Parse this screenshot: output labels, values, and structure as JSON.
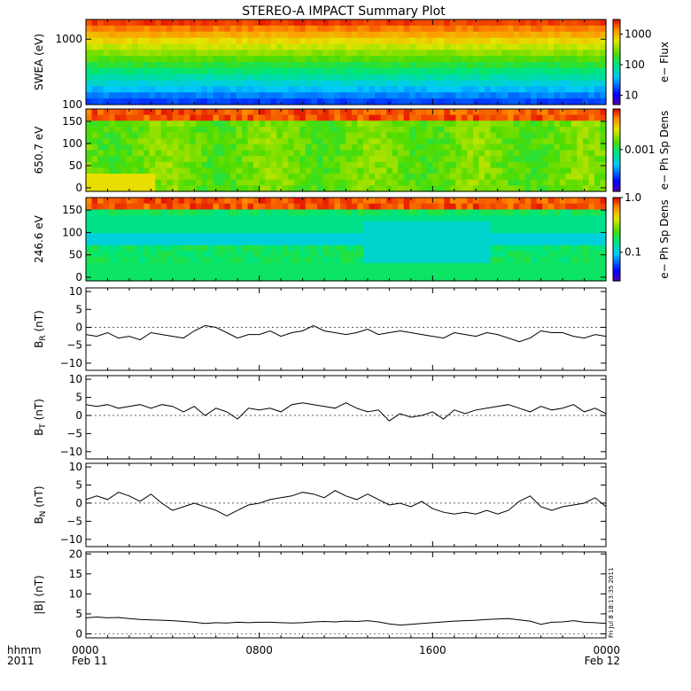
{
  "chart_data": {
    "title": "STEREO-A IMPACT Summary Plot",
    "stamp": "Fri Jul 8 18:13:35 2011",
    "x_axis": {
      "corner_top": "hhmm",
      "corner_bottom": "2011",
      "ticks": [
        {
          "hours": 0,
          "top": "0000",
          "bottom": "Feb 11"
        },
        {
          "hours": 8,
          "top": "0800",
          "bottom": ""
        },
        {
          "hours": 16,
          "top": "1600",
          "bottom": ""
        },
        {
          "hours": 24,
          "top": "0000",
          "bottom": "Feb 12"
        }
      ],
      "xlim_hours": [
        0,
        24
      ]
    },
    "panels": [
      {
        "type": "heatmap",
        "ylabel": "SWEA (eV)",
        "yscale": "log",
        "ylim": [
          100,
          2000
        ],
        "yticks": [
          {
            "v": 100,
            "label": "100"
          },
          {
            "v": 1000,
            "label": "1000"
          }
        ],
        "colorbar": {
          "label": "e− Flux",
          "scale": "log",
          "range": [
            5,
            3000
          ],
          "ticks": [
            {
              "v": 10,
              "label": "10"
            },
            {
              "v": 100,
              "label": "100"
            },
            {
              "v": 1000,
              "label": "1000"
            }
          ]
        }
      },
      {
        "type": "heatmap",
        "ylabel": "650.7 eV",
        "ylim": [
          -8,
          178
        ],
        "yticks": [
          {
            "v": 0,
            "label": "0"
          },
          {
            "v": 50,
            "label": "50"
          },
          {
            "v": 100,
            "label": "100"
          },
          {
            "v": 150,
            "label": "150"
          }
        ],
        "colorbar": {
          "label": "e− Ph Sp Dens",
          "scale": "log",
          "range": [
            3e-05,
            0.03
          ],
          "ticks": [
            {
              "v": 0.001,
              "label": "0.001"
            }
          ]
        }
      },
      {
        "type": "heatmap",
        "ylabel": "246.6 eV",
        "ylim": [
          -8,
          178
        ],
        "yticks": [
          {
            "v": 0,
            "label": "0"
          },
          {
            "v": 50,
            "label": "50"
          },
          {
            "v": 100,
            "label": "100"
          },
          {
            "v": 150,
            "label": "150"
          }
        ],
        "colorbar": {
          "label": "e− Ph Sp Dens",
          "scale": "log",
          "range": [
            0.03,
            1.0
          ],
          "ticks": [
            {
              "v": 0.1,
              "label": "0.1"
            },
            {
              "v": 1.0,
              "label": "1.0"
            }
          ]
        }
      },
      {
        "type": "line",
        "ylabel": "B",
        "ylabel_sub": "R",
        "ylabel_unit": " (nT)",
        "ylim": [
          -12,
          11
        ],
        "yticks": [
          {
            "v": -10,
            "label": "−10"
          },
          {
            "v": -5,
            "label": "−5"
          },
          {
            "v": 0,
            "label": "0"
          },
          {
            "v": 5,
            "label": "5"
          },
          {
            "v": 10,
            "label": "10"
          }
        ],
        "x_hours": [
          0,
          0.5,
          1,
          1.5,
          2,
          2.5,
          3,
          3.5,
          4,
          4.5,
          5,
          5.5,
          6,
          6.5,
          7,
          7.5,
          8,
          8.5,
          9,
          9.5,
          10,
          10.5,
          11,
          11.5,
          12,
          12.5,
          13,
          13.5,
          14,
          14.5,
          15,
          15.5,
          16,
          16.5,
          17,
          17.5,
          18,
          18.5,
          19,
          19.5,
          20,
          20.5,
          21,
          21.5,
          22,
          22.5,
          23,
          23.5,
          24
        ],
        "values": [
          -2,
          -2.5,
          -1.5,
          -3,
          -2.5,
          -3.5,
          -1.5,
          -2,
          -2.5,
          -3,
          -1,
          0.5,
          0,
          -1.5,
          -3,
          -2,
          -2,
          -1,
          -2.5,
          -1.5,
          -1,
          0.5,
          -1,
          -1.5,
          -2,
          -1.5,
          -0.5,
          -2,
          -1.5,
          -1,
          -1.5,
          -2,
          -2.5,
          -3,
          -1.5,
          -2,
          -2.5,
          -1.5,
          -2,
          -3,
          -4,
          -3,
          -1,
          -1.5,
          -1.5,
          -2.5,
          -3,
          -2,
          -2.5
        ]
      },
      {
        "type": "line",
        "ylabel": "B",
        "ylabel_sub": "T",
        "ylabel_unit": " (nT)",
        "ylim": [
          -12,
          11
        ],
        "yticks": [
          {
            "v": -10,
            "label": "−10"
          },
          {
            "v": -5,
            "label": "−5"
          },
          {
            "v": 0,
            "label": "0"
          },
          {
            "v": 5,
            "label": "5"
          },
          {
            "v": 10,
            "label": "10"
          }
        ],
        "x_hours": [
          0,
          0.5,
          1,
          1.5,
          2,
          2.5,
          3,
          3.5,
          4,
          4.5,
          5,
          5.5,
          6,
          6.5,
          7,
          7.5,
          8,
          8.5,
          9,
          9.5,
          10,
          10.5,
          11,
          11.5,
          12,
          12.5,
          13,
          13.5,
          14,
          14.5,
          15,
          15.5,
          16,
          16.5,
          17,
          17.5,
          18,
          18.5,
          19,
          19.5,
          20,
          20.5,
          21,
          21.5,
          22,
          22.5,
          23,
          23.5,
          24
        ],
        "values": [
          3,
          2.5,
          3,
          2,
          2.5,
          3,
          2,
          3,
          2.5,
          1,
          2.5,
          0,
          2,
          1,
          -1,
          2,
          1.5,
          2,
          1,
          3,
          3.5,
          3,
          2.5,
          2,
          3.5,
          2,
          1,
          1.5,
          -1.5,
          0.5,
          -0.5,
          0,
          1,
          -1,
          1.5,
          0.5,
          1.5,
          2,
          2.5,
          3,
          2,
          1,
          2.5,
          1.5,
          2,
          3,
          1,
          2,
          0.5
        ]
      },
      {
        "type": "line",
        "ylabel": "B",
        "ylabel_sub": "N",
        "ylabel_unit": " (nT)",
        "ylim": [
          -12,
          11
        ],
        "yticks": [
          {
            "v": -10,
            "label": "−10"
          },
          {
            "v": -5,
            "label": "−5"
          },
          {
            "v": 0,
            "label": "0"
          },
          {
            "v": 5,
            "label": "5"
          },
          {
            "v": 10,
            "label": "10"
          }
        ],
        "x_hours": [
          0,
          0.5,
          1,
          1.5,
          2,
          2.5,
          3,
          3.5,
          4,
          4.5,
          5,
          5.5,
          6,
          6.5,
          7,
          7.5,
          8,
          8.5,
          9,
          9.5,
          10,
          10.5,
          11,
          11.5,
          12,
          12.5,
          13,
          13.5,
          14,
          14.5,
          15,
          15.5,
          16,
          16.5,
          17,
          17.5,
          18,
          18.5,
          19,
          19.5,
          20,
          20.5,
          21,
          21.5,
          22,
          22.5,
          23,
          23.5,
          24
        ],
        "values": [
          1,
          2,
          1,
          3,
          2,
          0.5,
          2.5,
          0,
          -2,
          -1,
          0,
          -1,
          -2,
          -3.5,
          -2,
          -0.5,
          0,
          1,
          1.5,
          2,
          3,
          2.5,
          1.5,
          3.5,
          2,
          1,
          2.5,
          1,
          -0.5,
          0,
          -1,
          0.5,
          -1.5,
          -2.5,
          -3,
          -2.5,
          -3,
          -2,
          -3,
          -2,
          0.5,
          2,
          -1,
          -2,
          -1,
          -0.5,
          0,
          1.5,
          -1
        ]
      },
      {
        "type": "line",
        "ylabel": "|B| (nT)",
        "ylim": [
          -1,
          20.5
        ],
        "yticks": [
          {
            "v": 0,
            "label": "0"
          },
          {
            "v": 5,
            "label": "5"
          },
          {
            "v": 10,
            "label": "10"
          },
          {
            "v": 15,
            "label": "15"
          },
          {
            "v": 20,
            "label": "20"
          }
        ],
        "x_hours": [
          0,
          0.5,
          1,
          1.5,
          2,
          2.5,
          3,
          3.5,
          4,
          4.5,
          5,
          5.5,
          6,
          6.5,
          7,
          7.5,
          8,
          8.5,
          9,
          9.5,
          10,
          10.5,
          11,
          11.5,
          12,
          12.5,
          13,
          13.5,
          14,
          14.5,
          15,
          15.5,
          16,
          16.5,
          17,
          17.5,
          18,
          18.5,
          19,
          19.5,
          20,
          20.5,
          21,
          21.5,
          22,
          22.5,
          23,
          23.5,
          24
        ],
        "values": [
          4,
          4.2,
          4,
          4.1,
          3.8,
          3.6,
          3.5,
          3.4,
          3.3,
          3.1,
          2.9,
          2.6,
          2.8,
          2.7,
          2.9,
          2.8,
          2.9,
          2.9,
          2.8,
          2.7,
          2.8,
          3,
          3.1,
          3,
          3.2,
          3.1,
          3.3,
          3,
          2.5,
          2.2,
          2.4,
          2.6,
          2.8,
          3,
          3.2,
          3.3,
          3.4,
          3.6,
          3.7,
          3.8,
          3.5,
          3.2,
          2.4,
          2.9,
          3,
          3.3,
          2.9,
          2.8,
          2.6
        ]
      }
    ]
  }
}
